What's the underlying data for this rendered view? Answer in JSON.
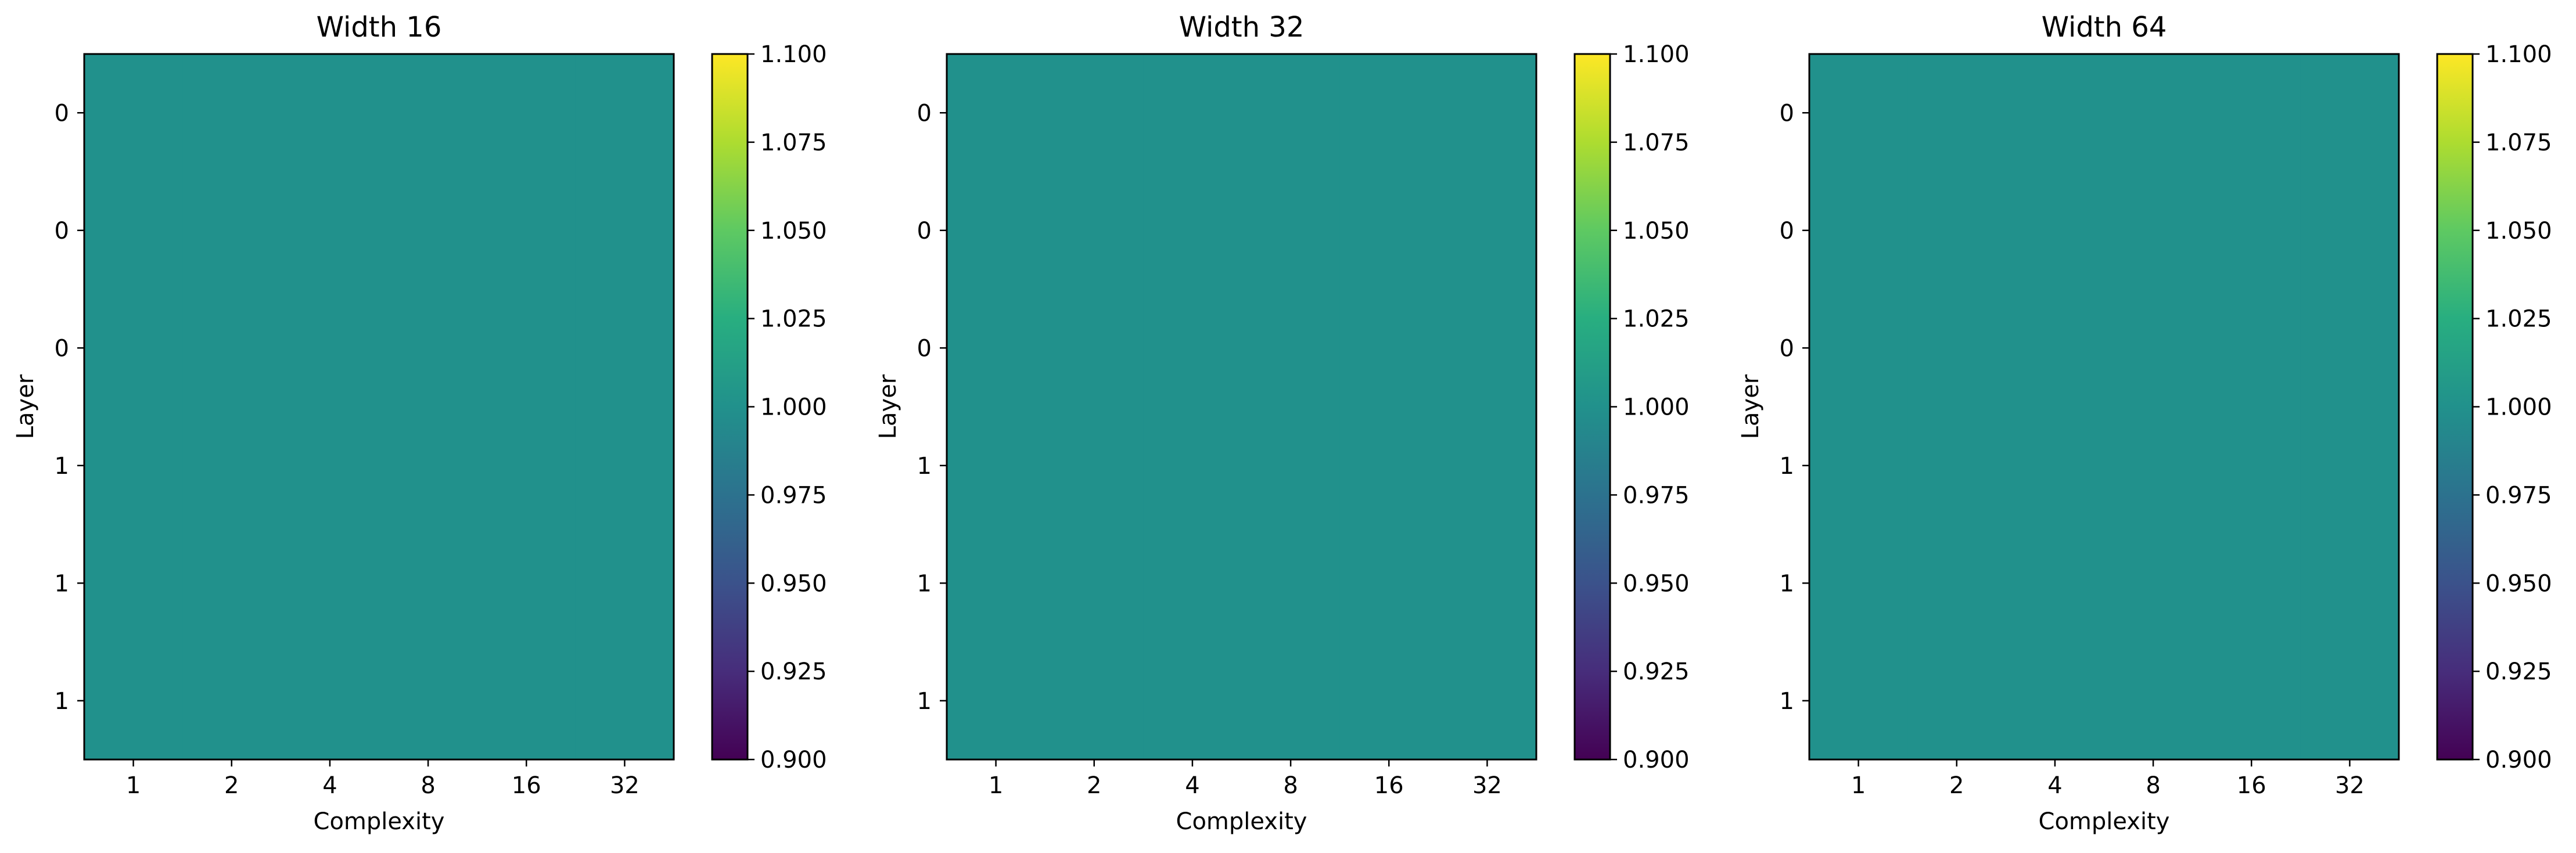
{
  "chart_data": [
    {
      "type": "heatmap",
      "title": "Width 16",
      "xlabel": "Complexity",
      "ylabel": "Layer",
      "x_tick_labels": [
        "1",
        "2",
        "4",
        "8",
        "16",
        "32"
      ],
      "y_tick_labels": [
        "0",
        "0",
        "0",
        "1",
        "1",
        "1"
      ],
      "values": [
        [
          1.0,
          1.0,
          1.0,
          1.0,
          1.0,
          1.0
        ],
        [
          1.0,
          1.0,
          1.0,
          1.0,
          1.0,
          1.0
        ],
        [
          1.0,
          1.0,
          1.0,
          1.0,
          1.0,
          1.0
        ],
        [
          1.0,
          1.0,
          1.0,
          1.0,
          1.0,
          1.0
        ],
        [
          1.0,
          1.0,
          1.0,
          1.0,
          1.0,
          1.0
        ],
        [
          1.0,
          1.0,
          1.0,
          1.0,
          1.0,
          1.0
        ]
      ],
      "colorbar": {
        "range": [
          0.9,
          1.1
        ],
        "tick_labels": [
          "0.900",
          "0.925",
          "0.950",
          "0.975",
          "1.000",
          "1.025",
          "1.050",
          "1.075",
          "1.100"
        ],
        "colormap": "viridis"
      }
    },
    {
      "type": "heatmap",
      "title": "Width 32",
      "xlabel": "Complexity",
      "ylabel": "Layer",
      "x_tick_labels": [
        "1",
        "2",
        "4",
        "8",
        "16",
        "32"
      ],
      "y_tick_labels": [
        "0",
        "0",
        "0",
        "1",
        "1",
        "1"
      ],
      "values": [
        [
          1.0,
          1.0,
          1.0,
          1.0,
          1.0,
          1.0
        ],
        [
          1.0,
          1.0,
          1.0,
          1.0,
          1.0,
          1.0
        ],
        [
          1.0,
          1.0,
          1.0,
          1.0,
          1.0,
          1.0
        ],
        [
          1.0,
          1.0,
          1.0,
          1.0,
          1.0,
          1.0
        ],
        [
          1.0,
          1.0,
          1.0,
          1.0,
          1.0,
          1.0
        ],
        [
          1.0,
          1.0,
          1.0,
          1.0,
          1.0,
          1.0
        ]
      ],
      "colorbar": {
        "range": [
          0.9,
          1.1
        ],
        "tick_labels": [
          "0.900",
          "0.925",
          "0.950",
          "0.975",
          "1.000",
          "1.025",
          "1.050",
          "1.075",
          "1.100"
        ],
        "colormap": "viridis"
      }
    },
    {
      "type": "heatmap",
      "title": "Width 64",
      "xlabel": "Complexity",
      "ylabel": "Layer",
      "x_tick_labels": [
        "1",
        "2",
        "4",
        "8",
        "16",
        "32"
      ],
      "y_tick_labels": [
        "0",
        "0",
        "0",
        "1",
        "1",
        "1"
      ],
      "values": [
        [
          1.0,
          1.0,
          1.0,
          1.0,
          1.0,
          1.0
        ],
        [
          1.0,
          1.0,
          1.0,
          1.0,
          1.0,
          1.0
        ],
        [
          1.0,
          1.0,
          1.0,
          1.0,
          1.0,
          1.0
        ],
        [
          1.0,
          1.0,
          1.0,
          1.0,
          1.0,
          1.0
        ],
        [
          1.0,
          1.0,
          1.0,
          1.0,
          1.0,
          1.0
        ],
        [
          1.0,
          1.0,
          1.0,
          1.0,
          1.0,
          1.0
        ]
      ],
      "colorbar": {
        "range": [
          0.9,
          1.1
        ],
        "tick_labels": [
          "0.900",
          "0.925",
          "0.950",
          "0.975",
          "1.000",
          "1.025",
          "1.050",
          "1.075",
          "1.100"
        ],
        "colormap": "viridis"
      }
    }
  ]
}
